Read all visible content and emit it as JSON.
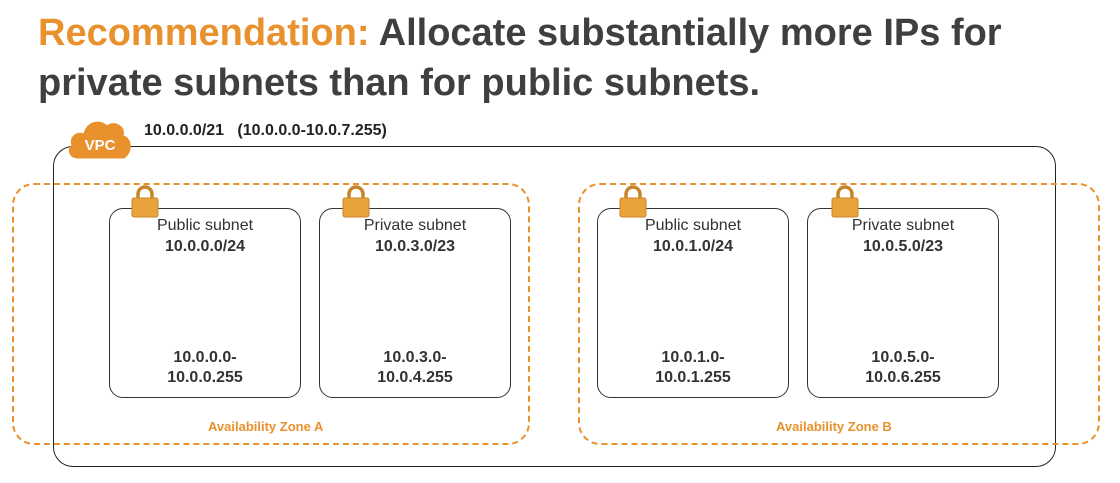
{
  "title": {
    "prefix": "Recommendation:",
    "text": "Allocate substantially more IPs for private subnets than for public subnets."
  },
  "vpc": {
    "icon": "vpc-cloud-icon",
    "label": "VPC",
    "cidr": "10.0.0.0/21   (10.0.0.0-10.0.7.255)"
  },
  "zones": [
    {
      "label": "Availability Zone A",
      "subnets": [
        {
          "name": "Public subnet",
          "cidr": "10.0.0.0/24",
          "range_start": "10.0.0.0-",
          "range_end": "10.0.0.255"
        },
        {
          "name": "Private subnet",
          "cidr": "10.0.3.0/23",
          "range_start": "10.0.3.0-",
          "range_end": "10.0.4.255"
        }
      ]
    },
    {
      "label": "Availability Zone B",
      "subnets": [
        {
          "name": "Public subnet",
          "cidr": "10.0.1.0/24",
          "range_start": "10.0.1.0-",
          "range_end": "10.0.1.255"
        },
        {
          "name": "Private subnet",
          "cidr": "10.0.5.0/23",
          "range_start": "10.0.5.0-",
          "range_end": "10.0.6.255"
        }
      ]
    }
  ],
  "colors": {
    "accent": "#e8912d",
    "lock": "#e8a33a",
    "text": "#3f3f3f"
  }
}
